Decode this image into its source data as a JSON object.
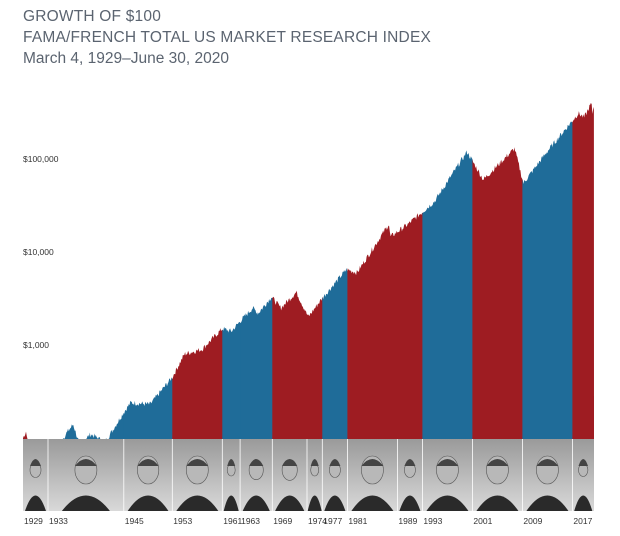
{
  "chart_data": {
    "type": "area",
    "title": "GROWTH OF $100",
    "subtitle": "FAMA/FRENCH TOTAL US MARKET RESEARCH INDEX",
    "period": "March 4, 1929–June 30, 2020",
    "y_scale": "log",
    "ylim": [
      30,
      500000
    ],
    "xlim": [
      1929.17,
      2020.5
    ],
    "y_ticks": [
      {
        "value": 1000,
        "label": "$1,000"
      },
      {
        "value": 10000,
        "label": "$10,000"
      },
      {
        "value": 100000,
        "label": "$100,000"
      }
    ],
    "x_tick_labels": [
      "1929",
      "1933",
      "1945",
      "1953",
      "1961",
      "1963",
      "1969",
      "1974",
      "1977",
      "1981",
      "1989",
      "1993",
      "2001",
      "2009",
      "2017"
    ],
    "presidential_terms": [
      {
        "start": 1929.17,
        "end": 1933.17,
        "party": "red"
      },
      {
        "start": 1933.17,
        "end": 1945.3,
        "party": "blue"
      },
      {
        "start": 1945.3,
        "end": 1953.05,
        "party": "blue"
      },
      {
        "start": 1953.05,
        "end": 1961.05,
        "party": "red"
      },
      {
        "start": 1961.05,
        "end": 1963.9,
        "party": "blue"
      },
      {
        "start": 1963.9,
        "end": 1969.05,
        "party": "blue"
      },
      {
        "start": 1969.05,
        "end": 1974.6,
        "party": "red"
      },
      {
        "start": 1974.6,
        "end": 1977.05,
        "party": "red"
      },
      {
        "start": 1977.05,
        "end": 1981.05,
        "party": "blue"
      },
      {
        "start": 1981.05,
        "end": 1989.05,
        "party": "red"
      },
      {
        "start": 1989.05,
        "end": 1993.05,
        "party": "red"
      },
      {
        "start": 1993.05,
        "end": 2001.05,
        "party": "blue"
      },
      {
        "start": 2001.05,
        "end": 2009.05,
        "party": "red"
      },
      {
        "start": 2009.05,
        "end": 2017.05,
        "party": "blue"
      },
      {
        "start": 2017.05,
        "end": 2020.5,
        "party": "red"
      }
    ],
    "series": [
      {
        "x": [
          1929.17,
          1929.7,
          1929.9,
          1930.3,
          1931.0,
          1932.5,
          1933.17,
          1934.0,
          1936.0,
          1937.2,
          1938.2,
          1940.0,
          1942.3,
          1945.3,
          1946.4,
          1949.5,
          1953.05,
          1955.0,
          1957.8,
          1961.05,
          1962.5,
          1963.9,
          1965.9,
          1966.8,
          1968.9,
          1970.4,
          1972.9,
          1974.8,
          1977.05,
          1980.9,
          1982.6,
          1987.7,
          1987.9,
          1990.8,
          1995.0,
          2000.2,
          2002.8,
          2007.8,
          2009.2,
          2013.0,
          2018.0,
          2018.95,
          2020.1,
          2020.2,
          2020.5
        ],
        "values": [
          100,
          120,
          80,
          95,
          60,
          30,
          50,
          65,
          110,
          140,
          85,
          110,
          90,
          190,
          240,
          230,
          450,
          800,
          900,
          1500,
          1400,
          1800,
          2500,
          2200,
          3300,
          2500,
          3700,
          2000,
          3200,
          6500,
          6000,
          20000,
          14500,
          20000,
          35000,
          120000,
          60000,
          130000,
          55000,
          120000,
          310000,
          280000,
          400000,
          300000,
          380000
        ]
      }
    ],
    "colors": {
      "red": "#9e1c22",
      "blue": "#1f6c99",
      "photo_band_top": "#9a9a9a",
      "photo_band_bottom": "#d6d6d6"
    }
  }
}
